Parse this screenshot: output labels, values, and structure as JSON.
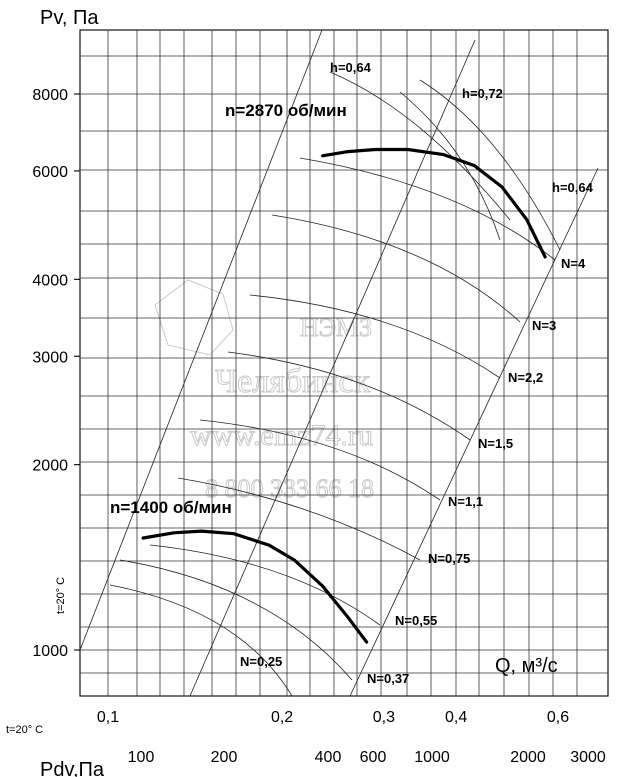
{
  "chart_data": {
    "type": "line",
    "title": "",
    "ylabel": "Pv, Па",
    "xlabel": "Q, м³/с",
    "x2label": "Pdv,Па",
    "temperature_label": "t=20° C",
    "ylim": [
      800,
      9200
    ],
    "y_ticks": [
      1000,
      2000,
      3000,
      4000,
      6000,
      8000
    ],
    "x_ticks": [
      0.1,
      0.2,
      0.3,
      0.4,
      0.6
    ],
    "x_tick_labels": [
      "0,1",
      "0,2",
      "0,3",
      "0,4",
      "0,6"
    ],
    "pdv_ticks": [
      "100",
      "200",
      "400",
      "600",
      "1000",
      "2000",
      "3000"
    ],
    "speed_labels": [
      "n=2870 об/мин",
      "n=1400 об/мин"
    ],
    "efficiency_labels": [
      "h=0,64",
      "h=0,72",
      "h=0,64"
    ],
    "power_labels": [
      "N=4",
      "N=3",
      "N=2,2",
      "N=1,5",
      "N=1,1",
      "N=0,75",
      "N=0,55",
      "N=0,37",
      "N=0,25"
    ],
    "series": [
      {
        "name": "n=2870 об/мин",
        "x": [
          0.235,
          0.26,
          0.29,
          0.33,
          0.38,
          0.43,
          0.48,
          0.53,
          0.57
        ],
        "y": [
          6350,
          6450,
          6500,
          6500,
          6380,
          6120,
          5650,
          5000,
          4350
        ]
      },
      {
        "name": "n=1400 об/мин",
        "x": [
          0.115,
          0.13,
          0.145,
          0.165,
          0.19,
          0.21,
          0.235,
          0.26,
          0.28
        ],
        "y": [
          1520,
          1550,
          1560,
          1545,
          1480,
          1400,
          1270,
          1130,
          1030
        ]
      }
    ],
    "watermark": [
      "НЭМЗ",
      "Челябинск",
      "www.emz74.ru",
      "8 800 333 66 18"
    ],
    "grid": true
  }
}
